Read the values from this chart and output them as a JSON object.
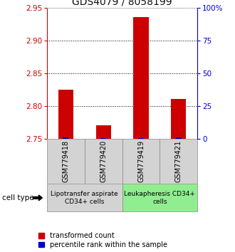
{
  "title": "GDS4079 / 8058199",
  "samples": [
    "GSM779418",
    "GSM779420",
    "GSM779419",
    "GSM779421"
  ],
  "red_values": [
    2.825,
    2.77,
    2.935,
    2.81
  ],
  "blue_values": [
    0.75,
    0.5,
    0.5,
    0.75
  ],
  "ylim_left": [
    2.75,
    2.95
  ],
  "ylim_right": [
    0,
    100
  ],
  "left_ticks": [
    2.75,
    2.8,
    2.85,
    2.9,
    2.95
  ],
  "right_ticks": [
    0,
    25,
    50,
    75,
    100
  ],
  "right_tick_labels": [
    "0",
    "25",
    "50",
    "75",
    "100%"
  ],
  "left_color": "#cc0000",
  "blue_color": "#0000cc",
  "bar_width": 0.4,
  "blue_bar_width": 0.15,
  "group1_label": "Lipotransfer aspirate\nCD34+ cells",
  "group2_label": "Leukapheresis CD34+\ncells",
  "group1_indices": [
    0,
    1
  ],
  "group2_indices": [
    2,
    3
  ],
  "group1_color": "#d3d3d3",
  "group2_color": "#90ee90",
  "cell_type_label": "cell type",
  "legend_red": "transformed count",
  "legend_blue": "percentile rank within the sample",
  "gridline_color": "#000000",
  "background_color": "#ffffff",
  "title_fontsize": 10,
  "sample_fontsize": 7,
  "group_fontsize": 6.5,
  "legend_fontsize": 7,
  "axis_tick_fontsize": 7.5
}
